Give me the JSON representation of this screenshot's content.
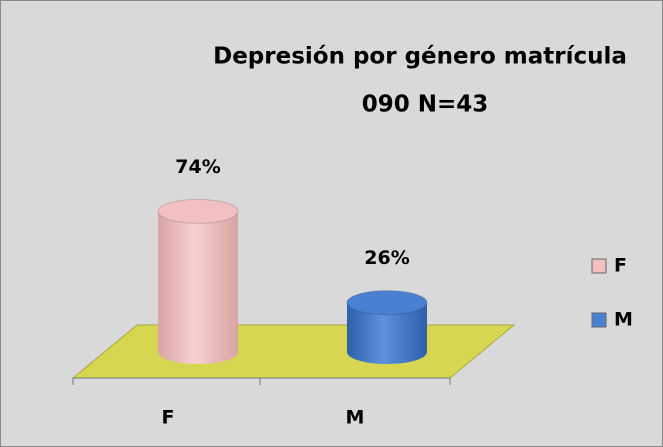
{
  "chart_data": {
    "type": "bar3d",
    "title": [
      "Depresión por género matrícula",
      "090 N=43"
    ],
    "categories": [
      "F",
      "M"
    ],
    "values": [
      74,
      26
    ],
    "value_labels": [
      "74%",
      "26%"
    ],
    "colors": [
      "#f2c0c0",
      "#4a80d2"
    ],
    "legend": "right"
  }
}
